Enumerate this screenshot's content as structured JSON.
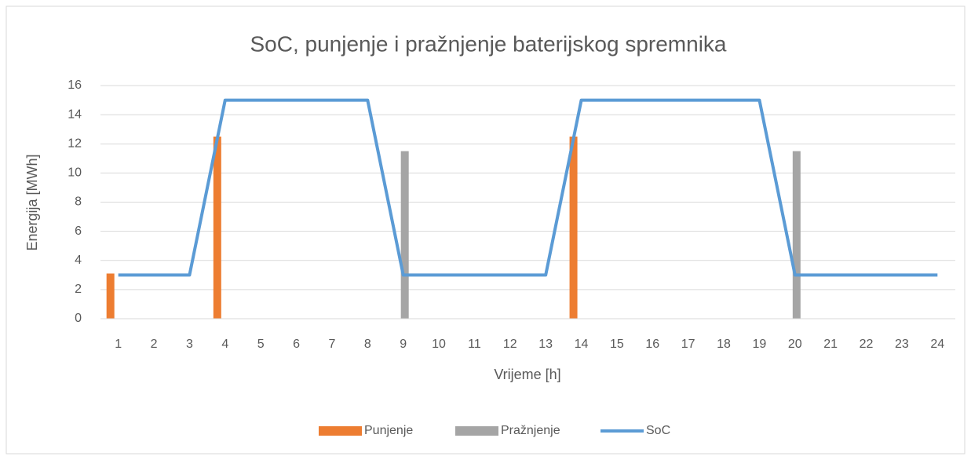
{
  "chart_data": {
    "type": "bar",
    "title": "SoC, punjenje i pražnjenje baterijskog spremnika",
    "x_label": "Vrijeme [h]",
    "y_label": "Energija [MWh]",
    "categories": [
      "1",
      "2",
      "3",
      "4",
      "5",
      "6",
      "7",
      "8",
      "9",
      "10",
      "11",
      "12",
      "13",
      "14",
      "15",
      "16",
      "17",
      "18",
      "19",
      "20",
      "21",
      "22",
      "23",
      "24"
    ],
    "series": [
      {
        "name": "Punjenje",
        "type": "bar",
        "color": "#ed7d31",
        "values": [
          3.1,
          0,
          0,
          12.5,
          0,
          0,
          0,
          0,
          0,
          0,
          0,
          0,
          0,
          12.5,
          0,
          0,
          0,
          0,
          0,
          0,
          0,
          0,
          0,
          0
        ]
      },
      {
        "name": "Pražnjenje",
        "type": "bar",
        "color": "#a5a5a5",
        "values": [
          0,
          0,
          0,
          0,
          0,
          0,
          0,
          0,
          11.5,
          0,
          0,
          0,
          0,
          0,
          0,
          0,
          0,
          0,
          0,
          11.5,
          0,
          0,
          0,
          0
        ]
      },
      {
        "name": "SoC",
        "type": "line",
        "color": "#5b9bd5",
        "values": [
          3,
          3,
          3,
          15,
          15,
          15,
          15,
          15,
          3,
          3,
          3,
          3,
          3,
          15,
          15,
          15,
          15,
          15,
          15,
          3,
          3,
          3,
          3,
          3
        ]
      }
    ],
    "ylim": [
      0,
      16
    ],
    "yticks": [
      0,
      2,
      4,
      6,
      8,
      10,
      12,
      14,
      16
    ],
    "grid": true,
    "legend": "bottom"
  }
}
